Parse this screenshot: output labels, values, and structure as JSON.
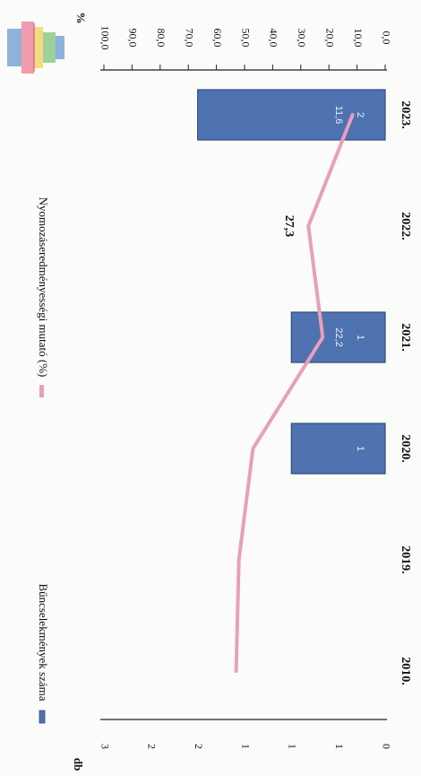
{
  "chart_data": {
    "type": "bar",
    "categories": [
      "2010.",
      "2019.",
      "2020.",
      "2021.",
      "2022.",
      "2023."
    ],
    "series": [
      {
        "name": "Bűncselekmények száma",
        "kind": "bar",
        "axis": "left",
        "color": "#4f72b0",
        "values": [
          0,
          0,
          1,
          1,
          0,
          2
        ],
        "labels": [
          "",
          "",
          "1",
          "1",
          "",
          "2"
        ]
      },
      {
        "name": "Nyomozáseredményességi mutató (%)",
        "kind": "line",
        "axis": "right",
        "color": "#e7a0b9",
        "values": [
          53.0,
          52.0,
          47.0,
          22.2,
          27.3,
          11.6
        ],
        "labels": [
          "",
          "",
          "",
          "22,2",
          "27,3",
          "11,6"
        ]
      }
    ],
    "left_axis": {
      "unit": "db",
      "range": [
        0,
        3
      ],
      "tick_values": [
        0,
        0.5,
        1,
        1.5,
        2,
        2.5,
        3
      ],
      "tick_labels": [
        "0",
        "1",
        "1",
        "1",
        "2",
        "2",
        "3"
      ]
    },
    "right_axis": {
      "unit": "%",
      "range": [
        0,
        100
      ],
      "tick_labels": [
        "0,0",
        "10,0",
        "20,0",
        "30,0",
        "40,0",
        "50,0",
        "60,0",
        "70,0",
        "80,0",
        "90,0",
        "100,0"
      ]
    },
    "grid": false,
    "legend_position": "top",
    "orientation": "rotated 90° clockwise"
  }
}
